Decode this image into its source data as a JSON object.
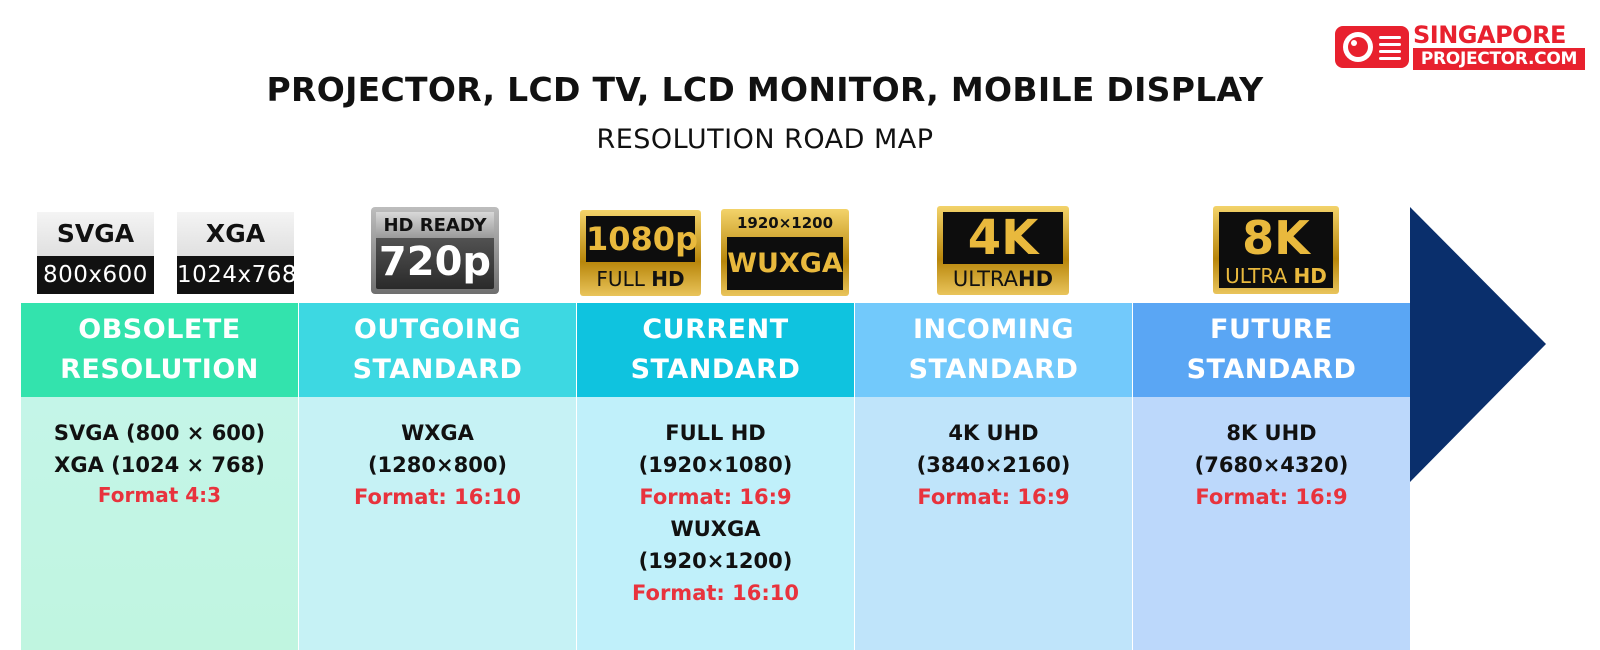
{
  "header": {
    "title": "PROJECTOR, LCD TV, LCD MONITOR, MOBILE DISPLAY",
    "subtitle": "RESOLUTION ROAD MAP"
  },
  "logo": {
    "line1": "SINGAPORE",
    "line2": "PROJECTOR.COM"
  },
  "badges": {
    "svga": {
      "top": "SVGA",
      "bottom": "800x600"
    },
    "xga": {
      "top": "XGA",
      "bottom": "1024x768"
    },
    "hd720": {
      "top": "HD READY",
      "bottom": "720p"
    },
    "fhd": {
      "top": "1080p",
      "bottom_a": "FULL ",
      "bottom_b": "HD"
    },
    "wuxga": {
      "top": "1920×1200",
      "bottom": "WUXGA"
    },
    "uhd4k": {
      "top": "4K",
      "bottom_a": "ULTRA",
      "bottom_b": "HD"
    },
    "uhd8k": {
      "top": "8K",
      "bottom_a": "ULTRA ",
      "bottom_b": "HD"
    }
  },
  "columns": [
    {
      "header": [
        "OBSOLETE",
        "RESOLUTION"
      ],
      "lines": [
        "SVGA (800 × 600)",
        "XGA (1024 × 768)"
      ],
      "format": "Format 4:3"
    },
    {
      "header": [
        "OUTGOING",
        "STANDARD"
      ],
      "lines": [
        "WXGA",
        "(1280×800)"
      ],
      "format": "Format: 16:10"
    },
    {
      "header": [
        "CURRENT",
        "STANDARD"
      ],
      "lines": [
        "FULL HD",
        "(1920×1080)"
      ],
      "format": "Format: 16:9",
      "lines2": [
        "WUXGA",
        "(1920×1200)"
      ],
      "format2": "Format: 16:10"
    },
    {
      "header": [
        "INCOMING",
        "STANDARD"
      ],
      "lines": [
        "4K UHD",
        "(3840×2160)"
      ],
      "format": "Format: 16:9"
    },
    {
      "header": [
        "FUTURE",
        "STANDARD"
      ],
      "lines": [
        "8K UHD",
        "(7680×4320)"
      ],
      "format": "Format: 16:9"
    }
  ],
  "colors": {
    "header_bg": [
      "#33e3ad",
      "#3dd8e2",
      "#0fc3df",
      "#72c9fb",
      "#5aa6f4"
    ],
    "body_bg": [
      "#c4f5e8",
      "#c6f2f5",
      "#c0f0fa",
      "#bfe4fa",
      "#bcd8fb"
    ],
    "arrow": "#0a2f6c",
    "format_text": "#e8333d",
    "brand_red": "#e8212e"
  }
}
